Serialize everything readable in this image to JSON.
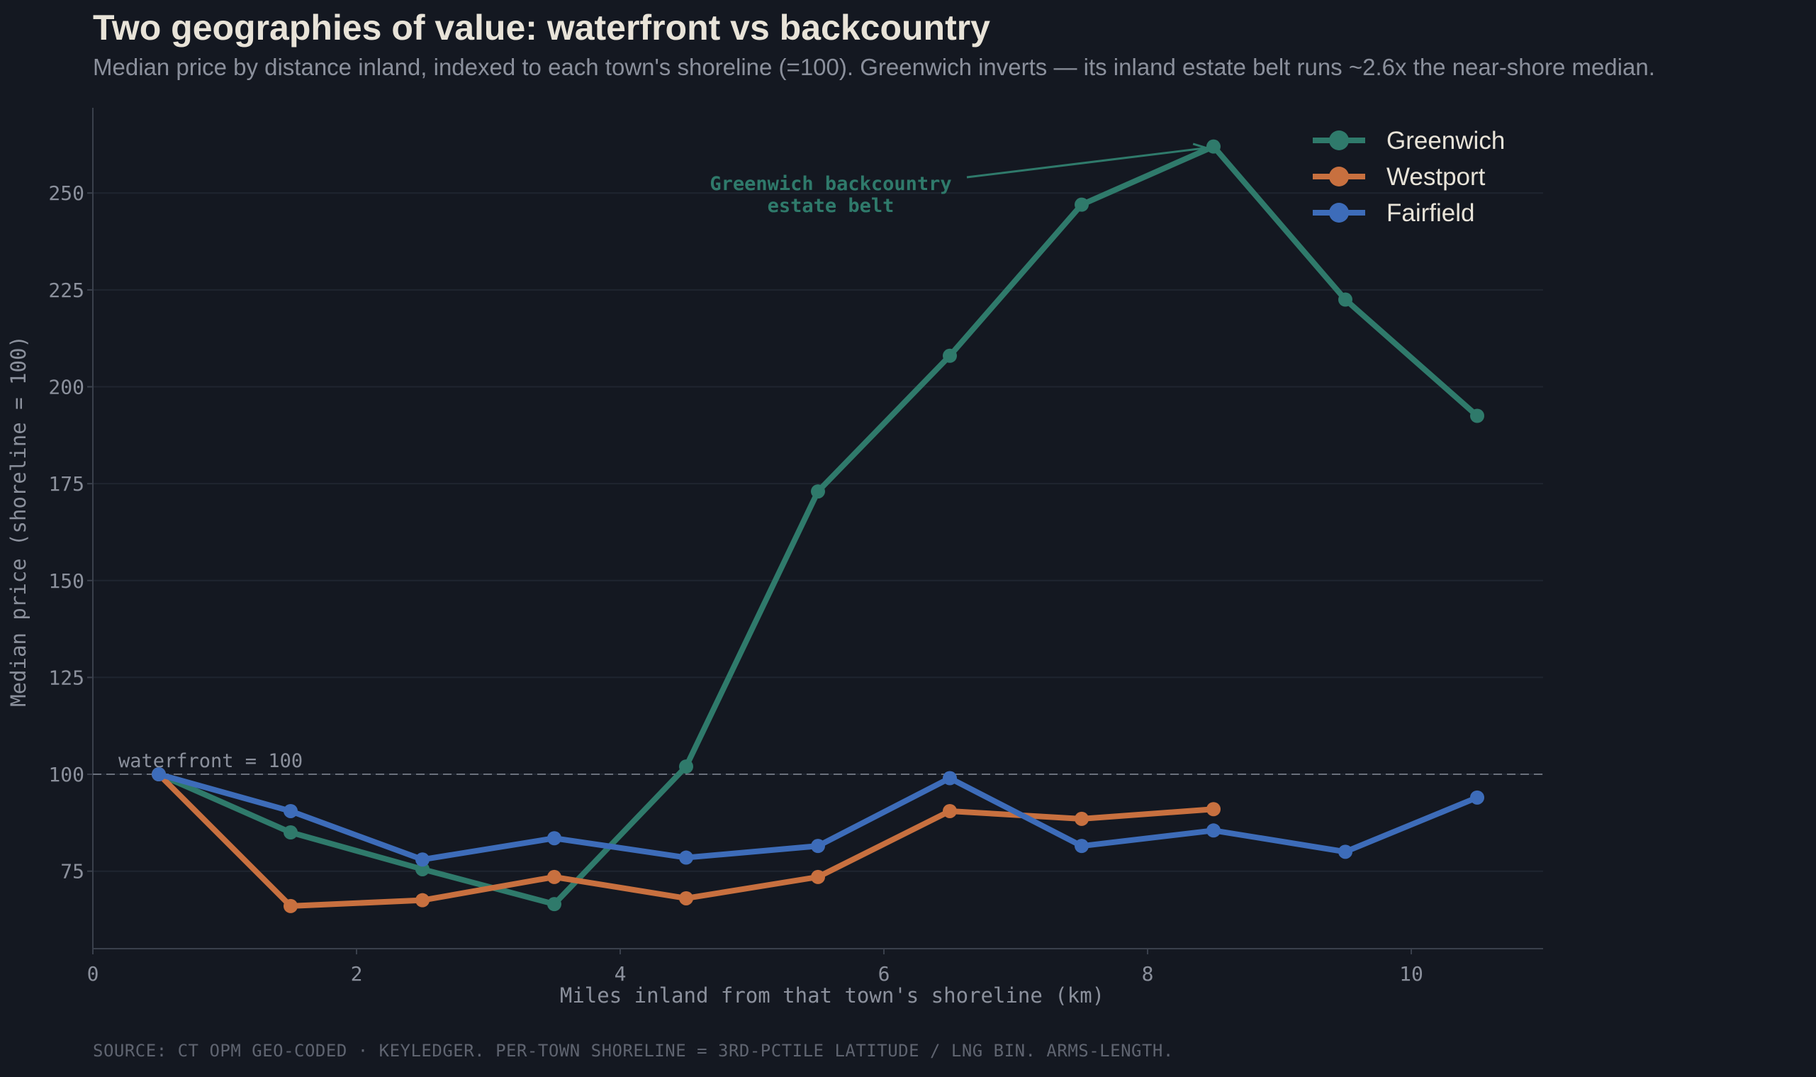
{
  "title": "Two geographies of value: waterfront vs backcountry",
  "subtitle": "Median price by distance inland, indexed to each town's shoreline (=100). Greenwich inverts — its inland estate belt runs ~2.6x the near-shore median.",
  "source": "SOURCE: CT OPM GEO-CODED · KEYLEDGER. PER-TOWN SHORELINE = 3RD-PCTILE LATITUDE / LNG BIN. ARMS-LENGTH.",
  "chart_data": {
    "type": "line",
    "xlabel": "Miles inland from that town's shoreline (km)",
    "ylabel": "Median price (shoreline = 100)",
    "xlim": [
      0,
      11
    ],
    "ylim": [
      55,
      272
    ],
    "xticks": [
      0,
      2,
      4,
      6,
      8,
      10
    ],
    "yticks": [
      75,
      100,
      125,
      150,
      175,
      200,
      225,
      250
    ],
    "grid": "horizontal",
    "legend_position": "top-right",
    "reference_line": {
      "y": 100,
      "label": "waterfront = 100",
      "style": "dashed"
    },
    "annotation": {
      "lines": [
        "Greenwich backcountry",
        "estate belt"
      ],
      "target": {
        "x": 8.5,
        "y": 262
      },
      "color": "#2f7a6b"
    },
    "series": [
      {
        "name": "Greenwich",
        "color": "#2f7a6b",
        "x": [
          0.5,
          1.5,
          2.5,
          3.5,
          4.5,
          5.5,
          6.5,
          7.5,
          8.5,
          9.5,
          10.5
        ],
        "y": [
          100,
          85,
          75.5,
          66.5,
          102,
          173,
          208,
          247,
          262,
          222.5,
          192.5
        ]
      },
      {
        "name": "Westport",
        "color": "#c8703f",
        "x": [
          0.5,
          1.5,
          2.5,
          3.5,
          4.5,
          5.5,
          6.5,
          7.5,
          8.5
        ],
        "y": [
          100,
          66,
          67.5,
          73.5,
          68,
          73.5,
          90.5,
          88.5,
          91
        ]
      },
      {
        "name": "Fairfield",
        "color": "#3d6cb9",
        "x": [
          0.5,
          1.5,
          2.5,
          3.5,
          4.5,
          5.5,
          6.5,
          7.5,
          8.5,
          9.5,
          10.5
        ],
        "y": [
          100,
          90.5,
          78,
          83.5,
          78.5,
          81.5,
          99,
          81.5,
          85.5,
          80,
          94
        ]
      }
    ]
  }
}
